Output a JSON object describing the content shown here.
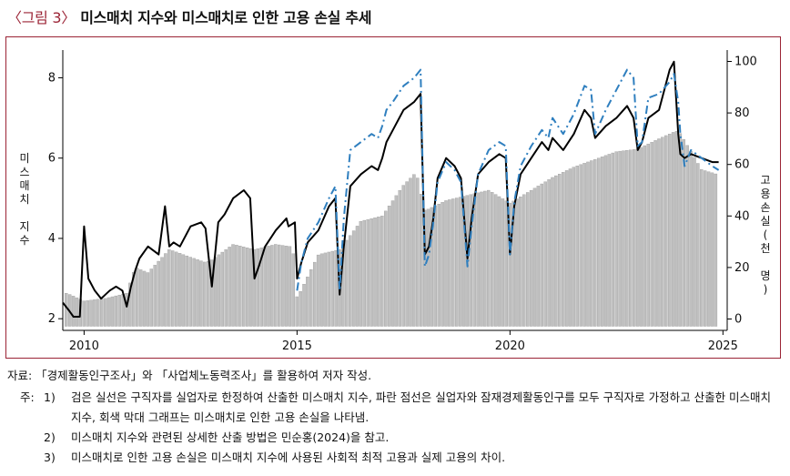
{
  "figure": {
    "label": "〈그림 3〉",
    "title": "미스매치 지수와 미스매치로 인한 고용 손실 추세"
  },
  "source": "자료: 「경제활동인구조사」와 「사업체노동력조사」를 활용하여 저자 작성.",
  "notes": {
    "prefix": "주:",
    "items": [
      {
        "num": "1)",
        "text": "검은 실선은 구직자를 실업자로 한정하여 산출한 미스매치 지수, 파란 점선은 실업자와 잠재경제활동인구를 모두 구직자로 가정하고 산출한 미스매치 지수, 회색 막대 그래프는 미스매치로 인한 고용 손실을 나타냄."
      },
      {
        "num": "2)",
        "text": "미스매치 지수와 관련된 상세한 산출 방법은 민순홍(2024)을 참고."
      },
      {
        "num": "3)",
        "text": "미스매치로 인한 고용 손실은 미스매치 지수에 사용된 사회적 최적 고용과 실제 고용의 차이."
      }
    ]
  },
  "chart_data": {
    "type": "line",
    "ylabel_left": "미스매치 지수",
    "ylabel_right": "고용손실(천 명)",
    "xlim": [
      2009.5,
      2025.1
    ],
    "ylim_left": [
      1.8,
      8.6
    ],
    "ylim_right": [
      -3,
      103
    ],
    "xticks": [
      2010,
      2015,
      2020,
      2025
    ],
    "yticks_left": [
      2,
      4,
      6,
      8
    ],
    "yticks_right": [
      0,
      20,
      40,
      60,
      80,
      100
    ],
    "colors": {
      "solid": "#000000",
      "dashed": "#2f7fbf",
      "bars": "#c0c0c0",
      "bar_edge": "#8f8f8f"
    },
    "series": [
      {
        "style": "solid-black",
        "axis": "left",
        "x": [
          2009.5,
          2009.65,
          2009.75,
          2009.9,
          2010.0,
          2010.1,
          2010.25,
          2010.4,
          2010.5,
          2010.6,
          2010.75,
          2010.9,
          2011.0,
          2011.1,
          2011.2,
          2011.3,
          2011.5,
          2011.75,
          2011.9,
          2012.0,
          2012.1,
          2012.25,
          2012.5,
          2012.75,
          2012.85,
          2013.0,
          2013.15,
          2013.3,
          2013.5,
          2013.75,
          2013.9,
          2014.0,
          2014.1,
          2014.25,
          2014.5,
          2014.75,
          2014.8,
          2014.95,
          2015.0,
          2015.1,
          2015.25,
          2015.5,
          2015.75,
          2015.9,
          2016.0,
          2016.1,
          2016.25,
          2016.5,
          2016.75,
          2016.9,
          2017.0,
          2017.1,
          2017.25,
          2017.5,
          2017.75,
          2017.9,
          2018.0,
          2018.1,
          2018.2,
          2018.3,
          2018.5,
          2018.7,
          2018.85,
          2019.0,
          2019.1,
          2019.25,
          2019.5,
          2019.75,
          2019.9,
          2020.0,
          2020.1,
          2020.25,
          2020.5,
          2020.75,
          2020.9,
          2021.0,
          2021.25,
          2021.5,
          2021.75,
          2021.9,
          2022.0,
          2022.25,
          2022.5,
          2022.75,
          2022.9,
          2023.0,
          2023.1,
          2023.25,
          2023.5,
          2023.75,
          2023.85,
          2023.95,
          2024.0,
          2024.1,
          2024.25,
          2024.5,
          2024.75,
          2024.9
        ],
        "y": [
          2.4,
          2.2,
          2.05,
          2.05,
          4.3,
          3.0,
          2.7,
          2.5,
          2.6,
          2.7,
          2.8,
          2.7,
          2.3,
          2.8,
          3.2,
          3.5,
          3.8,
          3.6,
          4.8,
          3.8,
          3.9,
          3.8,
          4.3,
          4.4,
          4.25,
          2.8,
          4.4,
          4.6,
          5.0,
          5.2,
          5.0,
          3.0,
          3.3,
          3.8,
          4.2,
          4.5,
          4.3,
          4.4,
          3.0,
          3.4,
          3.9,
          4.2,
          4.8,
          5.0,
          2.6,
          3.8,
          5.3,
          5.6,
          5.8,
          5.7,
          6.0,
          6.4,
          6.7,
          7.2,
          7.4,
          7.6,
          3.6,
          3.8,
          4.5,
          5.5,
          6.0,
          5.8,
          5.5,
          3.5,
          4.5,
          5.6,
          5.9,
          6.1,
          6.0,
          3.6,
          4.8,
          5.6,
          6.0,
          6.4,
          6.2,
          6.5,
          6.2,
          6.6,
          7.2,
          7.0,
          6.5,
          6.8,
          7.0,
          7.3,
          7.0,
          6.2,
          6.4,
          7.0,
          7.2,
          8.2,
          8.4,
          6.6,
          6.1,
          6.0,
          6.1,
          6.0,
          5.9,
          5.9
        ]
      },
      {
        "style": "dashed-blue",
        "axis": "left",
        "x": [
          2015.0,
          2015.1,
          2015.25,
          2015.5,
          2015.75,
          2015.9,
          2016.0,
          2016.1,
          2016.25,
          2016.5,
          2016.75,
          2016.9,
          2017.0,
          2017.1,
          2017.25,
          2017.5,
          2017.75,
          2017.9,
          2018.0,
          2018.1,
          2018.2,
          2018.3,
          2018.5,
          2018.7,
          2018.85,
          2019.0,
          2019.1,
          2019.25,
          2019.5,
          2019.75,
          2019.9,
          2020.0,
          2020.1,
          2020.25,
          2020.5,
          2020.75,
          2020.9,
          2021.0,
          2021.25,
          2021.5,
          2021.75,
          2021.9,
          2022.0,
          2022.25,
          2022.5,
          2022.75,
          2022.9,
          2023.0,
          2023.1,
          2023.25,
          2023.5,
          2023.75,
          2023.85,
          2023.95,
          2024.0,
          2024.1,
          2024.25,
          2024.5,
          2024.75,
          2024.9
        ],
        "y": [
          2.7,
          3.4,
          4.0,
          4.4,
          5.0,
          5.3,
          2.7,
          4.5,
          6.2,
          6.4,
          6.6,
          6.5,
          6.8,
          7.2,
          7.4,
          7.8,
          8.0,
          8.2,
          3.3,
          3.6,
          4.4,
          5.4,
          5.9,
          5.7,
          5.4,
          3.3,
          4.3,
          5.6,
          6.2,
          6.4,
          6.3,
          3.6,
          4.9,
          5.8,
          6.3,
          6.7,
          6.5,
          7.0,
          6.6,
          7.1,
          7.8,
          7.7,
          6.6,
          7.2,
          7.7,
          8.2,
          8.0,
          6.3,
          6.4,
          7.5,
          7.6,
          7.9,
          8.1,
          7.4,
          6.6,
          5.8,
          6.2,
          6.0,
          5.8,
          5.7
        ]
      },
      {
        "style": "grey-bars",
        "axis": "right",
        "x": [
          2009.6,
          2010.0,
          2010.5,
          2011.0,
          2011.2,
          2011.5,
          2012.0,
          2012.5,
          2012.85,
          2013.0,
          2013.5,
          2014.0,
          2014.5,
          2014.9,
          2015.0,
          2015.5,
          2016.0,
          2016.5,
          2017.0,
          2017.5,
          2017.8,
          2018.0,
          2018.5,
          2019.0,
          2019.5,
          2020.0,
          2020.5,
          2021.0,
          2021.5,
          2022.0,
          2022.5,
          2023.0,
          2023.5,
          2023.9,
          2024.0,
          2024.5,
          2024.9
        ],
        "y": [
          10,
          7,
          8,
          10,
          20,
          18,
          27,
          24,
          22,
          23,
          29,
          27,
          29,
          28,
          8,
          25,
          27,
          38,
          40,
          52,
          57,
          42,
          46,
          48,
          50,
          45,
          50,
          55,
          59,
          62,
          65,
          66,
          70,
          73,
          72,
          58,
          56
        ]
      }
    ]
  }
}
